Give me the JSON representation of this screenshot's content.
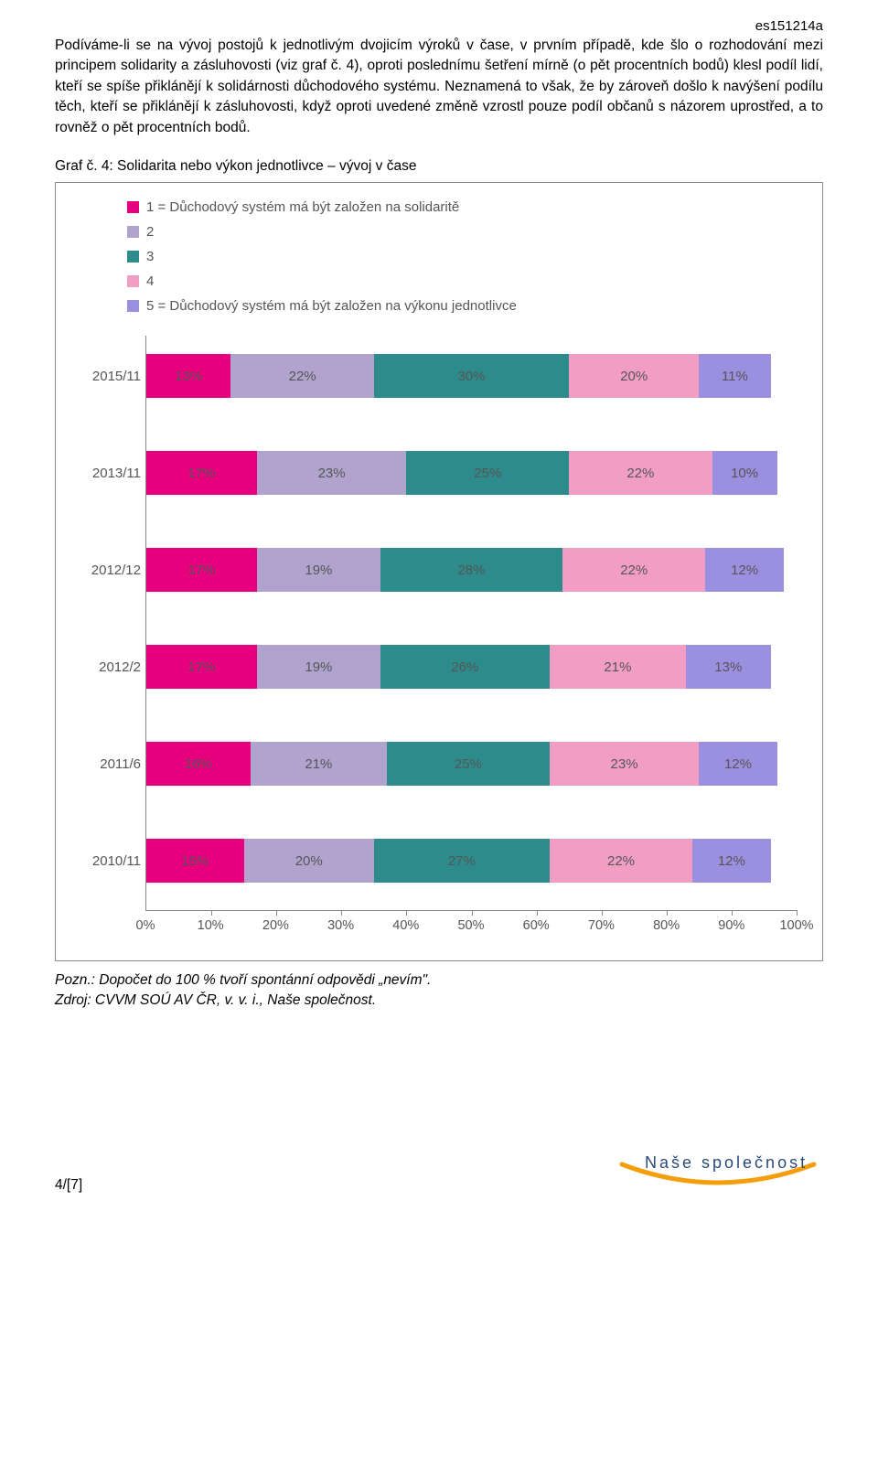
{
  "header_code": "es151214a",
  "body_text": "Podíváme-li se na vývoj postojů k jednotlivým dvojicím výroků v čase, v prvním případě, kde šlo o rozhodování mezi principem solidarity a zásluhovosti (viz graf č. 4), oproti poslednímu šetření mírně (o pět procentních bodů) klesl podíl lidí, kteří se spíše přiklánějí k solidárnosti důchodového systému. Neznamená to však, že by zároveň došlo k navýšení podílu těch, kteří se přiklánějí k zásluhovosti, když oproti uvedené změně vzrostl pouze podíl občanů s názorem uprostřed, a to rovněž o pět procentních bodů.",
  "chart_title": "Graf č. 4: Solidarita nebo výkon jednotlivce – vývoj v čase",
  "chart": {
    "legend": [
      {
        "label": "1 = Důchodový systém má být založen na solidaritě",
        "color": "#e6007e"
      },
      {
        "label": "2",
        "color": "#b0a4ce"
      },
      {
        "label": "3",
        "color": "#2e8b8b"
      },
      {
        "label": "4",
        "color": "#f29ec4"
      },
      {
        "label": "5 = Důchodový systém má být založen na výkonu jednotlivce",
        "color": "#9b8fe0"
      }
    ],
    "series_colors": [
      "#e6007e",
      "#b0a4ce",
      "#2e8b8b",
      "#f29ec4",
      "#9b8fe0"
    ],
    "categories": [
      "2015/11",
      "2013/11",
      "2012/12",
      "2012/2",
      "2011/6",
      "2010/11"
    ],
    "values": [
      [
        13,
        22,
        30,
        20,
        11
      ],
      [
        17,
        23,
        25,
        22,
        10
      ],
      [
        17,
        19,
        28,
        22,
        12
      ],
      [
        17,
        19,
        26,
        21,
        13
      ],
      [
        16,
        21,
        25,
        23,
        12
      ],
      [
        15,
        20,
        27,
        22,
        12
      ]
    ],
    "xmax": 100,
    "xticks": [
      0,
      10,
      20,
      30,
      40,
      50,
      60,
      70,
      80,
      90,
      100
    ],
    "value_label_color": "#555555",
    "axis_label_color": "#555555",
    "grid_color": "#cccccc",
    "border_color": "#888888"
  },
  "footnote_line1": "Pozn.: Dopočet do 100 % tvoří spontánní odpovědi „nevím\".",
  "footnote_line2": "Zdroj: CVVM SOÚ AV ČR, v. v. i., Naše společnost.",
  "page_number": "4/[7]",
  "logo_text": "Naše společnost",
  "logo_arc_color": "#f59e0b",
  "logo_text_color": "#2a4a7a"
}
